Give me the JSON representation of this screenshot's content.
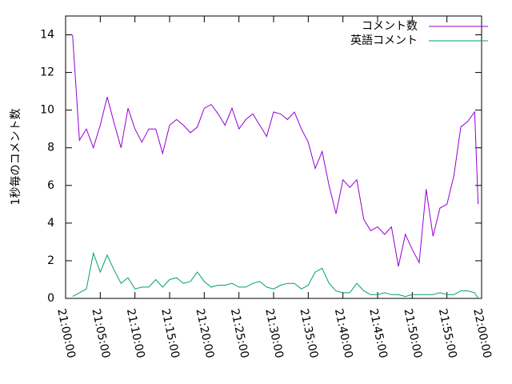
{
  "chart_data": {
    "type": "line",
    "ylabel": "1秒毎のコメント数",
    "x": [
      "21:01:00",
      "21:02:00",
      "21:03:00",
      "21:04:00",
      "21:05:00",
      "21:06:00",
      "21:07:00",
      "21:08:00",
      "21:09:00",
      "21:10:00",
      "21:11:00",
      "21:12:00",
      "21:13:00",
      "21:14:00",
      "21:15:00",
      "21:16:00",
      "21:17:00",
      "21:18:00",
      "21:19:00",
      "21:20:00",
      "21:21:00",
      "21:22:00",
      "21:23:00",
      "21:24:00",
      "21:25:00",
      "21:26:00",
      "21:27:00",
      "21:28:00",
      "21:29:00",
      "21:30:00",
      "21:31:00",
      "21:32:00",
      "21:33:00",
      "21:34:00",
      "21:35:00",
      "21:36:00",
      "21:37:00",
      "21:38:00",
      "21:39:00",
      "21:40:00",
      "21:41:00",
      "21:42:00",
      "21:43:00",
      "21:44:00",
      "21:45:00",
      "21:46:00",
      "21:47:00",
      "21:48:00",
      "21:49:00",
      "21:50:00",
      "21:51:00",
      "21:52:00",
      "21:53:00",
      "21:54:00",
      "21:55:00",
      "21:56:00",
      "21:57:00",
      "21:58:00",
      "21:59:00",
      "21:59:30"
    ],
    "series": [
      {
        "name": "コメント数",
        "color": "#9400d3",
        "values": [
          14.0,
          8.4,
          9.0,
          8.0,
          9.2,
          10.7,
          9.3,
          8.0,
          10.1,
          9.0,
          8.3,
          9.0,
          9.0,
          7.7,
          9.2,
          9.5,
          9.2,
          8.8,
          9.1,
          10.1,
          10.3,
          9.8,
          9.2,
          10.1,
          9.0,
          9.5,
          9.8,
          9.2,
          8.6,
          9.9,
          9.8,
          9.5,
          9.9,
          9.0,
          8.3,
          6.9,
          7.8,
          6.0,
          4.5,
          6.3,
          5.9,
          6.3,
          4.2,
          3.6,
          3.8,
          3.4,
          3.8,
          1.7,
          3.4,
          2.6,
          1.9,
          5.8,
          3.3,
          4.8,
          5.0,
          6.5,
          9.1,
          9.4,
          9.9,
          5.0
        ]
      },
      {
        "name": "英語コメント",
        "color": "#009e73",
        "values": [
          0.1,
          0.3,
          0.5,
          2.4,
          1.4,
          2.3,
          1.5,
          0.8,
          1.1,
          0.5,
          0.6,
          0.6,
          1.0,
          0.6,
          1.0,
          1.1,
          0.8,
          0.9,
          1.4,
          0.9,
          0.6,
          0.7,
          0.7,
          0.8,
          0.6,
          0.6,
          0.8,
          0.9,
          0.6,
          0.5,
          0.7,
          0.8,
          0.8,
          0.5,
          0.7,
          1.4,
          1.6,
          0.8,
          0.4,
          0.3,
          0.3,
          0.8,
          0.4,
          0.2,
          0.2,
          0.3,
          0.2,
          0.2,
          0.1,
          0.2,
          0.2,
          0.2,
          0.2,
          0.3,
          0.2,
          0.2,
          0.4,
          0.4,
          0.3,
          0.0
        ]
      }
    ],
    "xlim": [
      "21:00:00",
      "22:00:00"
    ],
    "xticks": [
      "21:00:00",
      "21:05:00",
      "21:10:00",
      "21:15:00",
      "21:20:00",
      "21:25:00",
      "21:30:00",
      "21:35:00",
      "21:40:00",
      "21:45:00",
      "21:50:00",
      "21:55:00",
      "22:00:00"
    ],
    "ylim": [
      0,
      15
    ],
    "yticks": [
      0,
      2,
      4,
      6,
      8,
      10,
      12,
      14
    ],
    "legend": "top-right"
  }
}
